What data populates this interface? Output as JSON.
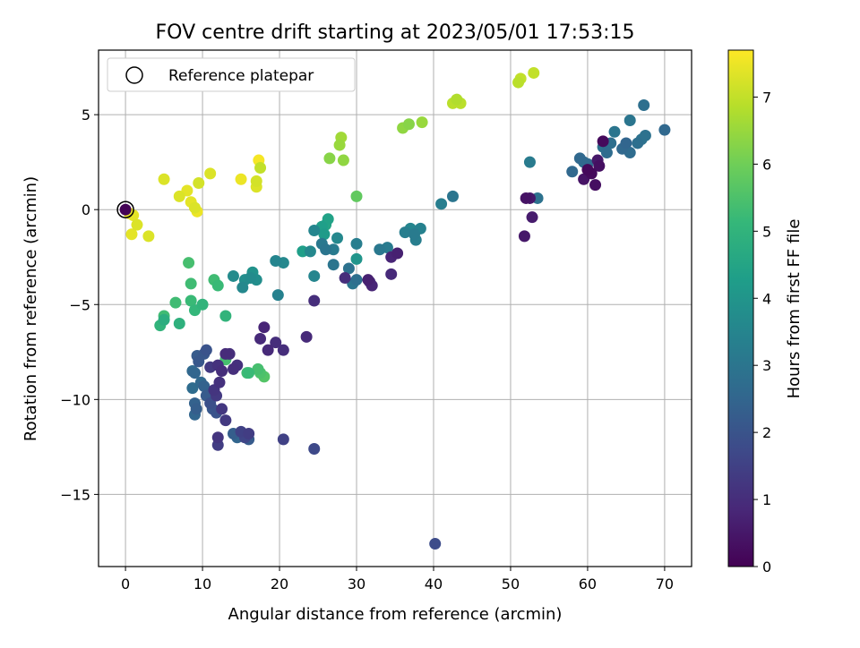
{
  "chart_data": {
    "type": "scatter",
    "title": "FOV centre drift starting at 2023/05/01 17:53:15",
    "xlabel": "Angular distance from reference (arcmin)",
    "ylabel": "Rotation from reference (arcmin)",
    "xlim": [
      -3.5,
      73.5
    ],
    "ylim": [
      -18.8,
      8.4
    ],
    "xticks": [
      0,
      10,
      20,
      30,
      40,
      50,
      60,
      70
    ],
    "yticks": [
      5,
      0,
      -5,
      -10,
      -15
    ],
    "grid": true,
    "legend": {
      "location": "top-left",
      "entries": [
        {
          "label": "Reference platepar",
          "marker": "open-circle"
        }
      ]
    },
    "reference_point": {
      "x": 0,
      "y": 0
    },
    "colorbar": {
      "label": "Hours from first FF file",
      "colormap": "viridis",
      "range": [
        0,
        7.7
      ],
      "ticks": [
        0,
        1,
        2,
        3,
        4,
        5,
        6,
        7
      ]
    },
    "series": [
      {
        "points": [
          [
            0,
            0,
            0.05
          ],
          [
            60.5,
            1.9,
            0.2
          ],
          [
            61.5,
            2.3,
            0.3
          ],
          [
            59.5,
            1.6,
            0.4
          ],
          [
            62,
            3.6,
            0.2
          ],
          [
            61,
            1.3,
            0.3
          ],
          [
            60,
            2.1,
            0.15
          ],
          [
            61.3,
            2.6,
            0.5
          ],
          [
            52,
            0.6,
            0.4
          ],
          [
            52.5,
            0.6,
            0.5
          ],
          [
            52.8,
            -0.4,
            0.6
          ],
          [
            51.8,
            -1.4,
            0.5
          ],
          [
            34.5,
            -2.5,
            0.8
          ],
          [
            35.3,
            -2.3,
            0.7
          ],
          [
            34.5,
            -3.4,
            0.9
          ],
          [
            31.5,
            -3.7,
            0.7
          ],
          [
            32,
            -4.0,
            0.8
          ],
          [
            31.7,
            -3.8,
            0.9
          ],
          [
            28.5,
            -3.6,
            1.0
          ],
          [
            24.5,
            -4.8,
            1.0
          ],
          [
            23.5,
            -6.7,
            0.9
          ],
          [
            18,
            -6.2,
            0.8
          ],
          [
            17.5,
            -6.8,
            0.9
          ],
          [
            19.5,
            -7.0,
            1.0
          ],
          [
            18.5,
            -7.4,
            0.9
          ],
          [
            20.5,
            -7.4,
            1.0
          ],
          [
            12.5,
            -8.5,
            1.0
          ],
          [
            13.5,
            -7.6,
            1.0
          ],
          [
            14.5,
            -8.2,
            1.1
          ],
          [
            13,
            -7.6,
            0.95
          ],
          [
            12,
            -8.2,
            1.1
          ],
          [
            12.2,
            -9.1,
            1.1
          ],
          [
            11,
            -8.3,
            1.3
          ],
          [
            14,
            -8.4,
            1.05
          ],
          [
            11.5,
            -9.5,
            1.2
          ],
          [
            11.8,
            -9.8,
            1.3
          ],
          [
            12.5,
            -10.5,
            1.25
          ],
          [
            13,
            -11.1,
            1.3
          ],
          [
            12,
            -12.0,
            1.2
          ],
          [
            12,
            -12.4,
            1.4
          ],
          [
            15,
            -11.7,
            1.5
          ],
          [
            15.5,
            -12.0,
            1.6
          ],
          [
            16,
            -11.8,
            1.4
          ],
          [
            20.5,
            -12.1,
            1.5
          ],
          [
            24.5,
            -12.6,
            1.7
          ],
          [
            40.2,
            -17.6,
            1.8
          ],
          [
            11,
            -10.2,
            1.9
          ],
          [
            11.3,
            -10.5,
            2.1
          ],
          [
            11.8,
            -10.7,
            2.0
          ],
          [
            10.5,
            -9.8,
            2.2
          ],
          [
            10.5,
            -7.4,
            2.0
          ],
          [
            10.2,
            -7.6,
            2.1
          ],
          [
            9.3,
            -7.7,
            2.2
          ],
          [
            9.5,
            -8.0,
            2.1
          ],
          [
            8.7,
            -8.5,
            2.6
          ],
          [
            9,
            -8.6,
            2.5
          ],
          [
            8.7,
            -9.4,
            2.7
          ],
          [
            9,
            -10.2,
            2.4
          ],
          [
            9.2,
            -10.5,
            2.3
          ],
          [
            9,
            -10.8,
            2.5
          ],
          [
            10.2,
            -9.3,
            2.4
          ],
          [
            9.8,
            -9.1,
            2.6
          ],
          [
            14,
            -11.8,
            2.3
          ],
          [
            14.5,
            -12.0,
            2.5
          ],
          [
            16,
            -12.1,
            2.2
          ],
          [
            26,
            -2.1,
            3.0
          ],
          [
            27,
            -2.1,
            3.2
          ],
          [
            25.5,
            -1.8,
            3.1
          ],
          [
            27,
            -2.9,
            3.0
          ],
          [
            29,
            -3.1,
            2.9
          ],
          [
            30,
            -3.7,
            2.8
          ],
          [
            29.5,
            -3.9,
            3.0
          ],
          [
            33,
            -2.1,
            3.1
          ],
          [
            34,
            -2.0,
            3.2
          ],
          [
            30,
            -1.8,
            3.3
          ],
          [
            36.3,
            -1.2,
            3.3
          ],
          [
            37,
            -1.0,
            3.5
          ],
          [
            37.5,
            -1.3,
            3.2
          ],
          [
            38.3,
            -1.0,
            3.4
          ],
          [
            37.7,
            -1.6,
            3.3
          ],
          [
            41,
            0.3,
            3.3
          ],
          [
            42.5,
            0.7,
            3.0
          ],
          [
            52.5,
            2.5,
            3.2
          ],
          [
            53.5,
            0.6,
            2.9
          ],
          [
            58,
            2.0,
            2.6
          ],
          [
            59,
            2.7,
            2.6
          ],
          [
            59.5,
            2.5,
            2.7
          ],
          [
            62,
            3.3,
            2.9
          ],
          [
            62.5,
            3.0,
            2.7
          ],
          [
            63,
            3.5,
            2.8
          ],
          [
            64.5,
            3.2,
            2.6
          ],
          [
            65,
            3.5,
            2.5
          ],
          [
            65.5,
            3.0,
            2.7
          ],
          [
            66.5,
            3.5,
            2.8
          ],
          [
            67,
            3.7,
            2.9
          ],
          [
            67.5,
            3.9,
            2.9
          ],
          [
            65.5,
            4.7,
            3.0
          ],
          [
            67.3,
            5.5,
            2.8
          ],
          [
            70,
            4.2,
            2.6
          ],
          [
            63.5,
            4.1,
            3.0
          ],
          [
            60,
            2.4,
            2.6
          ],
          [
            19.5,
            -2.7,
            3.5
          ],
          [
            20.5,
            -2.8,
            3.6
          ],
          [
            19.8,
            -4.5,
            3.4
          ],
          [
            24,
            -2.2,
            3.6
          ],
          [
            24.5,
            -1.1,
            3.5
          ],
          [
            27.5,
            -1.5,
            3.6
          ],
          [
            24.5,
            -3.5,
            3.5
          ],
          [
            15.5,
            -3.7,
            3.8
          ],
          [
            16.5,
            -3.3,
            3.9
          ],
          [
            16.2,
            -3.6,
            3.7
          ],
          [
            17,
            -3.7,
            3.8
          ],
          [
            15.2,
            -4.1,
            3.6
          ],
          [
            14,
            -3.5,
            3.7
          ],
          [
            25.8,
            -1.3,
            4.2
          ],
          [
            26.3,
            -0.5,
            4.4
          ],
          [
            30,
            -2.6,
            4.0
          ],
          [
            23,
            -2.2,
            4.3
          ],
          [
            26,
            -0.8,
            4.5
          ],
          [
            25.5,
            -0.9,
            4.3
          ],
          [
            10,
            -5.0,
            5.0
          ],
          [
            9,
            -5.3,
            5.1
          ],
          [
            8.5,
            -4.8,
            5.2
          ],
          [
            7,
            -6.0,
            4.9
          ],
          [
            5,
            -5.8,
            4.8
          ],
          [
            4.5,
            -6.1,
            5.0
          ],
          [
            5,
            -5.6,
            5.3
          ],
          [
            13,
            -5.6,
            5.0
          ],
          [
            11.5,
            -3.7,
            5.3
          ],
          [
            12,
            -4.0,
            5.2
          ],
          [
            8.5,
            -3.9,
            5.3
          ],
          [
            8.2,
            -2.8,
            5.4
          ],
          [
            6.5,
            -4.9,
            5.3
          ],
          [
            15.8,
            -8.6,
            5.3
          ],
          [
            16,
            -8.6,
            5.2
          ],
          [
            17.2,
            -8.4,
            5.4
          ],
          [
            17.5,
            -8.6,
            5.5
          ],
          [
            18,
            -8.8,
            5.6
          ],
          [
            13,
            -7.9,
            5.4
          ],
          [
            30,
            0.7,
            5.8
          ],
          [
            26.5,
            2.7,
            6.3
          ],
          [
            28.3,
            2.6,
            6.4
          ],
          [
            27.8,
            3.4,
            6.5
          ],
          [
            28,
            3.8,
            6.6
          ],
          [
            36,
            4.3,
            6.4
          ],
          [
            36.8,
            4.5,
            6.3
          ],
          [
            38.5,
            4.6,
            6.5
          ],
          [
            42.5,
            5.6,
            6.9
          ],
          [
            43,
            5.8,
            6.8
          ],
          [
            43.5,
            5.6,
            6.9
          ],
          [
            51,
            6.7,
            6.9
          ],
          [
            51.3,
            6.9,
            7.0
          ],
          [
            53,
            7.2,
            7.0
          ],
          [
            0.5,
            -0.2,
            7.5
          ],
          [
            1,
            -0.3,
            7.4
          ],
          [
            1.5,
            -0.8,
            7.3
          ],
          [
            0.8,
            -1.3,
            7.4
          ],
          [
            3,
            -1.4,
            7.3
          ],
          [
            8.5,
            0.4,
            7.4
          ],
          [
            9,
            0.1,
            7.3
          ],
          [
            9.3,
            -0.1,
            7.5
          ],
          [
            8,
            1.0,
            7.4
          ],
          [
            7,
            0.7,
            7.3
          ],
          [
            9.5,
            1.4,
            7.2
          ],
          [
            11,
            1.9,
            7.3
          ],
          [
            5,
            1.6,
            7.3
          ],
          [
            15,
            1.6,
            7.5
          ],
          [
            17,
            1.5,
            7.2
          ],
          [
            17,
            1.2,
            7.3
          ],
          [
            17.5,
            2.2,
            7.0
          ],
          [
            17.3,
            2.6,
            7.6
          ]
        ]
      }
    ]
  }
}
